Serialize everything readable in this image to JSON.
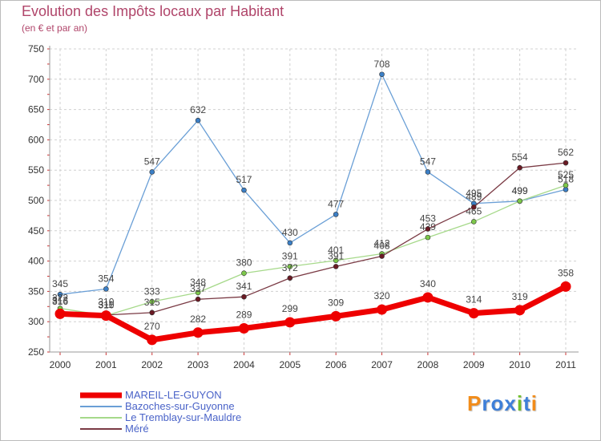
{
  "title": "Evolution des Impôts locaux par Habitant",
  "subtitle": "(en € et par an)",
  "logo": {
    "text": "Proxiti",
    "colors": [
      "#f28c1a",
      "#3e7fd8",
      "#3e7fd8",
      "#3e7fd8",
      "#6fbf2a",
      "#3e7fd8",
      "#f28c1a"
    ]
  },
  "chart_data": {
    "type": "line",
    "title": "Evolution des Impôts locaux par Habitant",
    "ylabel": "(en € et par an)",
    "xlabel": "",
    "categories": [
      "2000",
      "2001",
      "2002",
      "2003",
      "2004",
      "2005",
      "2006",
      "2007",
      "2008",
      "2009",
      "2010",
      "2011"
    ],
    "ylim": [
      250,
      750
    ],
    "yticks": [
      250,
      300,
      350,
      400,
      450,
      500,
      550,
      600,
      650,
      700,
      750
    ],
    "grid": true,
    "series": [
      {
        "name": "Bazoches-sur-Guyonne",
        "color": "#6a9fd6",
        "marker": "#3b7fc6",
        "values": [
          345,
          354,
          547,
          632,
          517,
          430,
          477,
          708,
          547,
          495,
          499,
          518
        ]
      },
      {
        "name": "Le Tremblay-sur-Mauldre",
        "color": "#a6d98a",
        "marker": "#7dc84a",
        "values": [
          322,
          310,
          333,
          348,
          380,
          391,
          401,
          412,
          439,
          465,
          499,
          525
        ]
      },
      {
        "name": "Méré",
        "color": "#7a3a44",
        "marker": "#6b1a24",
        "values": [
          316,
          311,
          315,
          337,
          341,
          372,
          391,
          408,
          453,
          489,
          554,
          562
        ]
      },
      {
        "name": "MAREIL-LE-GUYON",
        "color": "#ee0000",
        "marker": "#ee0000",
        "bold": true,
        "values": [
          313,
          310,
          270,
          282,
          289,
          299,
          309,
          320,
          340,
          314,
          319,
          358
        ]
      }
    ]
  }
}
